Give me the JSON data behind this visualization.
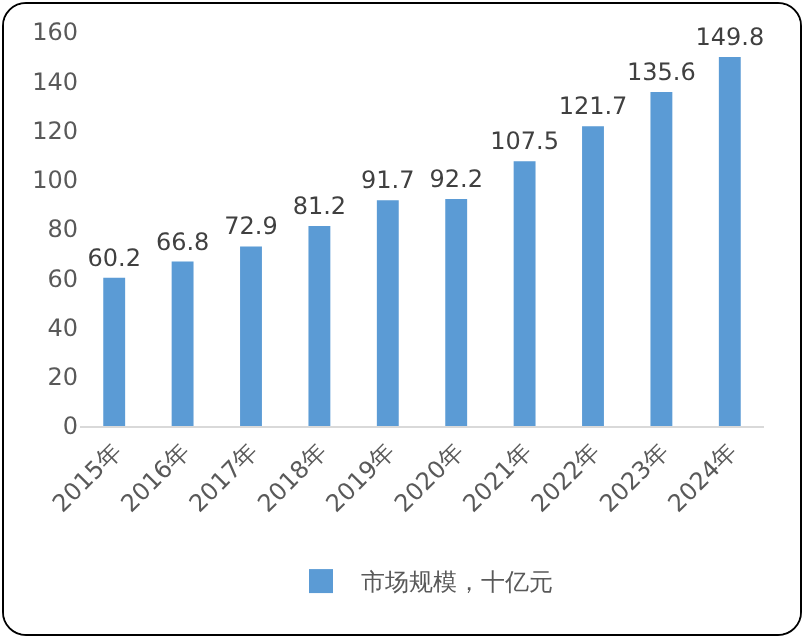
{
  "chart_data": {
    "type": "bar",
    "categories": [
      "2015年",
      "2016年",
      "2017年",
      "2018年",
      "2019年",
      "2020年",
      "2021年",
      "2022年",
      "2023年",
      "2024年"
    ],
    "series": [
      {
        "name": "市场规模，十亿元",
        "color": "#5b9bd5",
        "values": [
          60.2,
          66.8,
          72.9,
          81.2,
          91.7,
          92.2,
          107.5,
          121.7,
          135.6,
          149.8
        ]
      }
    ],
    "ylim": [
      0,
      160
    ],
    "yticks": [
      0,
      20,
      40,
      60,
      80,
      100,
      120,
      140,
      160
    ],
    "grid": false,
    "data_labels": true,
    "legend": "bottom"
  }
}
